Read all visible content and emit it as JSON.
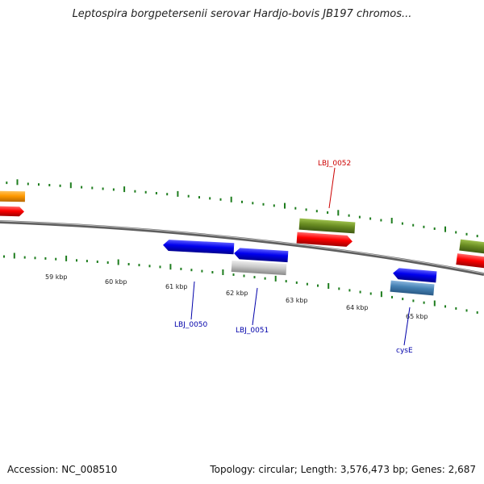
{
  "header": {
    "title": "Leptospira borgpetersenii serovar Hardjo-bovis JB197 chromos..."
  },
  "footer": {
    "accession": "Accession: NC_008510",
    "summary": "Topology: circular; Length: 3,576,473 bp; Genes: 2,687"
  },
  "map": {
    "kbp_labels": [
      "59 kbp",
      "60 kbp",
      "61 kbp",
      "62 kbp",
      "63 kbp",
      "64 kbp",
      "65 kbp"
    ],
    "gene_labels": {
      "lbj_0052": "LBJ_0052",
      "lbj_0050": "LBJ_0050",
      "lbj_0051": "LBJ_0051",
      "cyse": "cysE"
    },
    "colors": {
      "backbone": "#7a7a7a",
      "ticks": "#1e7d1e",
      "red_gene": "#ff0000",
      "blue_gene": "#0000ee",
      "olive_gene": "#6b8e23",
      "orange_gene": "#ff9900",
      "gray_gene": "#c8c8c8",
      "steelblue_gene": "#4682b4",
      "label_red": "#cc0000",
      "label_blue": "#0000aa"
    }
  }
}
